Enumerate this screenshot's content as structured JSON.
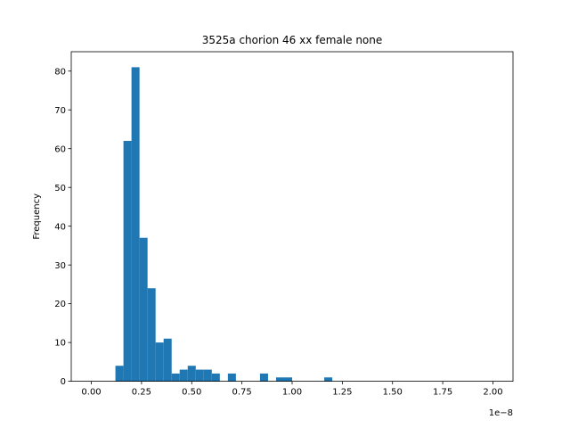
{
  "chart_data": {
    "type": "bar",
    "title": "3525a chorion 46 xx female none",
    "xlabel": "",
    "ylabel": "Frequency",
    "x_offset_label": "1e−8",
    "xlim": [
      -0.1,
      2.1
    ],
    "ylim": [
      0,
      85
    ],
    "bin_width": 0.04,
    "x_ticks": [
      0.0,
      0.25,
      0.5,
      0.75,
      1.0,
      1.25,
      1.5,
      1.75,
      2.0
    ],
    "x_tick_labels": [
      "0.00",
      "0.25",
      "0.50",
      "0.75",
      "1.00",
      "1.25",
      "1.50",
      "1.75",
      "2.00"
    ],
    "y_ticks": [
      0,
      10,
      20,
      30,
      40,
      50,
      60,
      70,
      80
    ],
    "y_tick_labels": [
      "0",
      "10",
      "20",
      "30",
      "40",
      "50",
      "60",
      "70",
      "80"
    ],
    "bar_color": "#1f77b4",
    "bins": [
      {
        "x": 0.12,
        "count": 4
      },
      {
        "x": 0.16,
        "count": 62
      },
      {
        "x": 0.2,
        "count": 81
      },
      {
        "x": 0.24,
        "count": 37
      },
      {
        "x": 0.28,
        "count": 24
      },
      {
        "x": 0.32,
        "count": 10
      },
      {
        "x": 0.36,
        "count": 11
      },
      {
        "x": 0.4,
        "count": 2
      },
      {
        "x": 0.44,
        "count": 3
      },
      {
        "x": 0.48,
        "count": 4
      },
      {
        "x": 0.52,
        "count": 3
      },
      {
        "x": 0.56,
        "count": 3
      },
      {
        "x": 0.6,
        "count": 2
      },
      {
        "x": 0.68,
        "count": 2
      },
      {
        "x": 0.84,
        "count": 2
      },
      {
        "x": 0.92,
        "count": 1
      },
      {
        "x": 0.96,
        "count": 1
      },
      {
        "x": 1.16,
        "count": 1
      }
    ]
  }
}
